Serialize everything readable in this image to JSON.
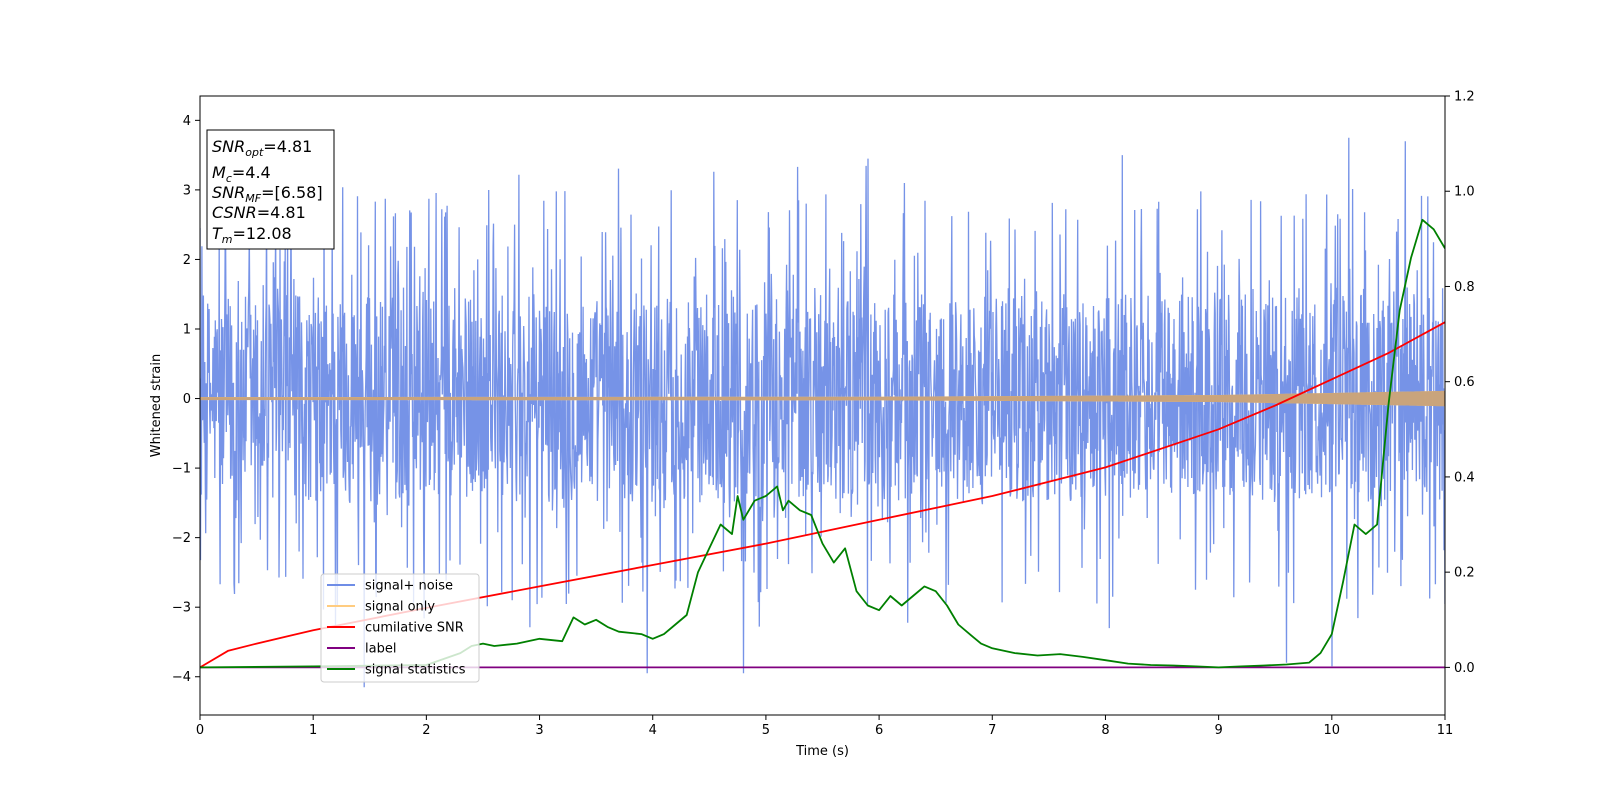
{
  "chart_data": {
    "type": "line",
    "x_axis": {
      "label": "Time (s)",
      "range": [
        0,
        11
      ],
      "ticks": [
        "0",
        "1",
        "2",
        "3",
        "4",
        "5",
        "6",
        "7",
        "8",
        "9",
        "10",
        "11"
      ]
    },
    "y_axis_left": {
      "label": "Whitened strain",
      "range": [
        -4.55,
        4.35
      ],
      "ticks": [
        -4,
        -3,
        -2,
        -1,
        0,
        1,
        2,
        3,
        4
      ],
      "tick_labels": [
        "−4",
        "−3",
        "−2",
        "−1",
        "0",
        "1",
        "2",
        "3",
        "4"
      ]
    },
    "y_axis_right": {
      "range": [
        -0.1,
        1.2
      ],
      "ticks": [
        0.0,
        0.2,
        0.4,
        0.6,
        0.8,
        1.0,
        1.2
      ],
      "tick_labels": [
        "0.0",
        "0.2",
        "0.4",
        "0.6",
        "0.8",
        "1.0",
        "1.2"
      ]
    },
    "annotation": {
      "lines": [
        {
          "main": "SNR",
          "sub": "opt",
          "rest": "=4.81"
        },
        {
          "main": "M",
          "sub": "c",
          "rest": "=4.4"
        },
        {
          "main": "SNR",
          "sub": "MF",
          "rest": "=[6.58]"
        },
        {
          "main": "CSNR",
          "sub": "",
          "rest": "=4.81"
        },
        {
          "main": "T",
          "sub": "m",
          "rest": "=12.08"
        }
      ]
    },
    "legend": {
      "placement": "lower-left",
      "entries": [
        {
          "label": "signal+ noise",
          "color": "#6f8de6"
        },
        {
          "label": "signal only",
          "color": "#ffcc80"
        },
        {
          "label": "cumilative SNR",
          "color": "#ff0000"
        },
        {
          "label": "label",
          "color": "#800080"
        },
        {
          "label": "signal statistics",
          "color": "#008000"
        }
      ]
    },
    "series": [
      {
        "name": "signal+ noise",
        "axis": "left",
        "kind": "noise",
        "color": "#6f8de6",
        "x_range": [
          0,
          11
        ],
        "typical_band": [
          -1.5,
          1.5
        ],
        "peak_max": 3.95,
        "peak_min": -4.15,
        "notable_peaks": [
          {
            "x": 10.0,
            "y": 3.95
          },
          {
            "x": 10.15,
            "y": 3.75
          },
          {
            "x": 10.65,
            "y": 3.7
          },
          {
            "x": 5.9,
            "y": 3.45
          },
          {
            "x": 8.15,
            "y": 3.5
          },
          {
            "x": 1.45,
            "y": -4.15
          },
          {
            "x": 4.8,
            "y": -3.95
          },
          {
            "x": 3.95,
            "y": -3.95
          },
          {
            "x": 9.6,
            "y": -3.8
          },
          {
            "x": 10.0,
            "y": -3.85
          }
        ]
      },
      {
        "name": "signal only",
        "axis": "left",
        "kind": "chirp",
        "color": "#ffcc80",
        "x_range": [
          0,
          11
        ],
        "amplitude": [
          [
            0,
            0.02
          ],
          [
            6,
            0.025
          ],
          [
            9,
            0.05
          ],
          [
            10,
            0.08
          ],
          [
            11,
            0.11
          ]
        ]
      },
      {
        "name": "cumilative SNR",
        "axis": "right",
        "color": "#ff0000",
        "x": [
          0,
          0.25,
          0.5,
          1,
          2,
          3,
          4,
          5,
          6,
          7,
          8,
          9,
          9.5,
          10,
          10.5,
          11
        ],
        "y": [
          0.0,
          0.035,
          0.05,
          0.078,
          0.125,
          0.17,
          0.215,
          0.26,
          0.31,
          0.36,
          0.42,
          0.5,
          0.55,
          0.605,
          0.66,
          0.725
        ]
      },
      {
        "name": "label",
        "axis": "right",
        "color": "#800080",
        "x": [
          0,
          11
        ],
        "y": [
          0.0,
          0.0
        ]
      },
      {
        "name": "signal statistics",
        "axis": "right",
        "color": "#008000",
        "x": [
          0,
          1,
          2,
          2.3,
          2.4,
          2.5,
          2.6,
          2.8,
          3.0,
          3.2,
          3.3,
          3.4,
          3.5,
          3.6,
          3.7,
          3.9,
          4.0,
          4.1,
          4.2,
          4.3,
          4.4,
          4.5,
          4.6,
          4.7,
          4.75,
          4.8,
          4.9,
          5.0,
          5.1,
          5.15,
          5.2,
          5.3,
          5.4,
          5.5,
          5.6,
          5.7,
          5.8,
          5.9,
          6.0,
          6.1,
          6.2,
          6.3,
          6.4,
          6.5,
          6.6,
          6.7,
          6.8,
          6.9,
          7.0,
          7.2,
          7.4,
          7.6,
          7.8,
          8.0,
          8.2,
          8.4,
          8.6,
          8.8,
          9.0,
          9.2,
          9.4,
          9.6,
          9.8,
          9.9,
          10.0,
          10.1,
          10.2,
          10.3,
          10.4,
          10.5,
          10.6,
          10.7,
          10.8,
          10.9,
          11.0
        ],
        "y": [
          0.0,
          0.002,
          0.005,
          0.03,
          0.045,
          0.05,
          0.045,
          0.05,
          0.06,
          0.055,
          0.105,
          0.09,
          0.1,
          0.085,
          0.075,
          0.07,
          0.06,
          0.07,
          0.09,
          0.11,
          0.2,
          0.25,
          0.3,
          0.28,
          0.36,
          0.31,
          0.35,
          0.36,
          0.38,
          0.33,
          0.35,
          0.33,
          0.32,
          0.26,
          0.22,
          0.25,
          0.16,
          0.13,
          0.12,
          0.15,
          0.13,
          0.15,
          0.17,
          0.16,
          0.13,
          0.09,
          0.07,
          0.05,
          0.04,
          0.03,
          0.025,
          0.028,
          0.022,
          0.015,
          0.008,
          0.005,
          0.004,
          0.002,
          0.0,
          0.002,
          0.004,
          0.006,
          0.01,
          0.03,
          0.07,
          0.18,
          0.3,
          0.28,
          0.3,
          0.55,
          0.75,
          0.86,
          0.94,
          0.92,
          0.88
        ]
      }
    ]
  }
}
